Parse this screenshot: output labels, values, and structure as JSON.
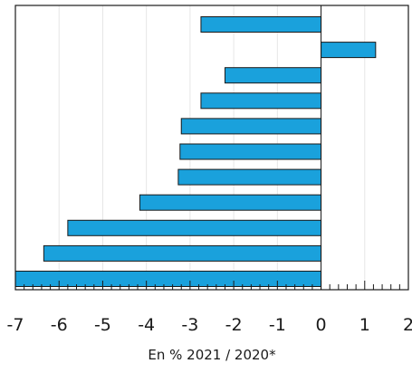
{
  "chart_data": {
    "type": "bar",
    "orientation": "horizontal",
    "title": "",
    "xlabel": "En % 2021 / 2020*",
    "ylabel": "",
    "xlim": [
      -7,
      2
    ],
    "x_ticks": [
      -7,
      -6,
      -5,
      -4,
      -3,
      -2,
      -1,
      0,
      1,
      2
    ],
    "x_tick_labels": [
      "-7",
      "-6",
      "-5",
      "-4",
      "-3",
      "-2",
      "-1",
      "0",
      "1",
      "2"
    ],
    "minor_ticks_per_major": 5,
    "grid": true,
    "legend": "none",
    "series": [
      {
        "values": [
          -2.75,
          1.25,
          -2.2,
          -2.75,
          -3.2,
          -3.23,
          -3.27,
          -4.15,
          -5.8,
          -6.35,
          -7.0
        ]
      }
    ],
    "colors": {
      "bar_fill": "#1aa1dc",
      "bar_stroke": "#1a1a1a",
      "grid": "#e6e6e6",
      "axis": "#1a1a1a"
    }
  }
}
